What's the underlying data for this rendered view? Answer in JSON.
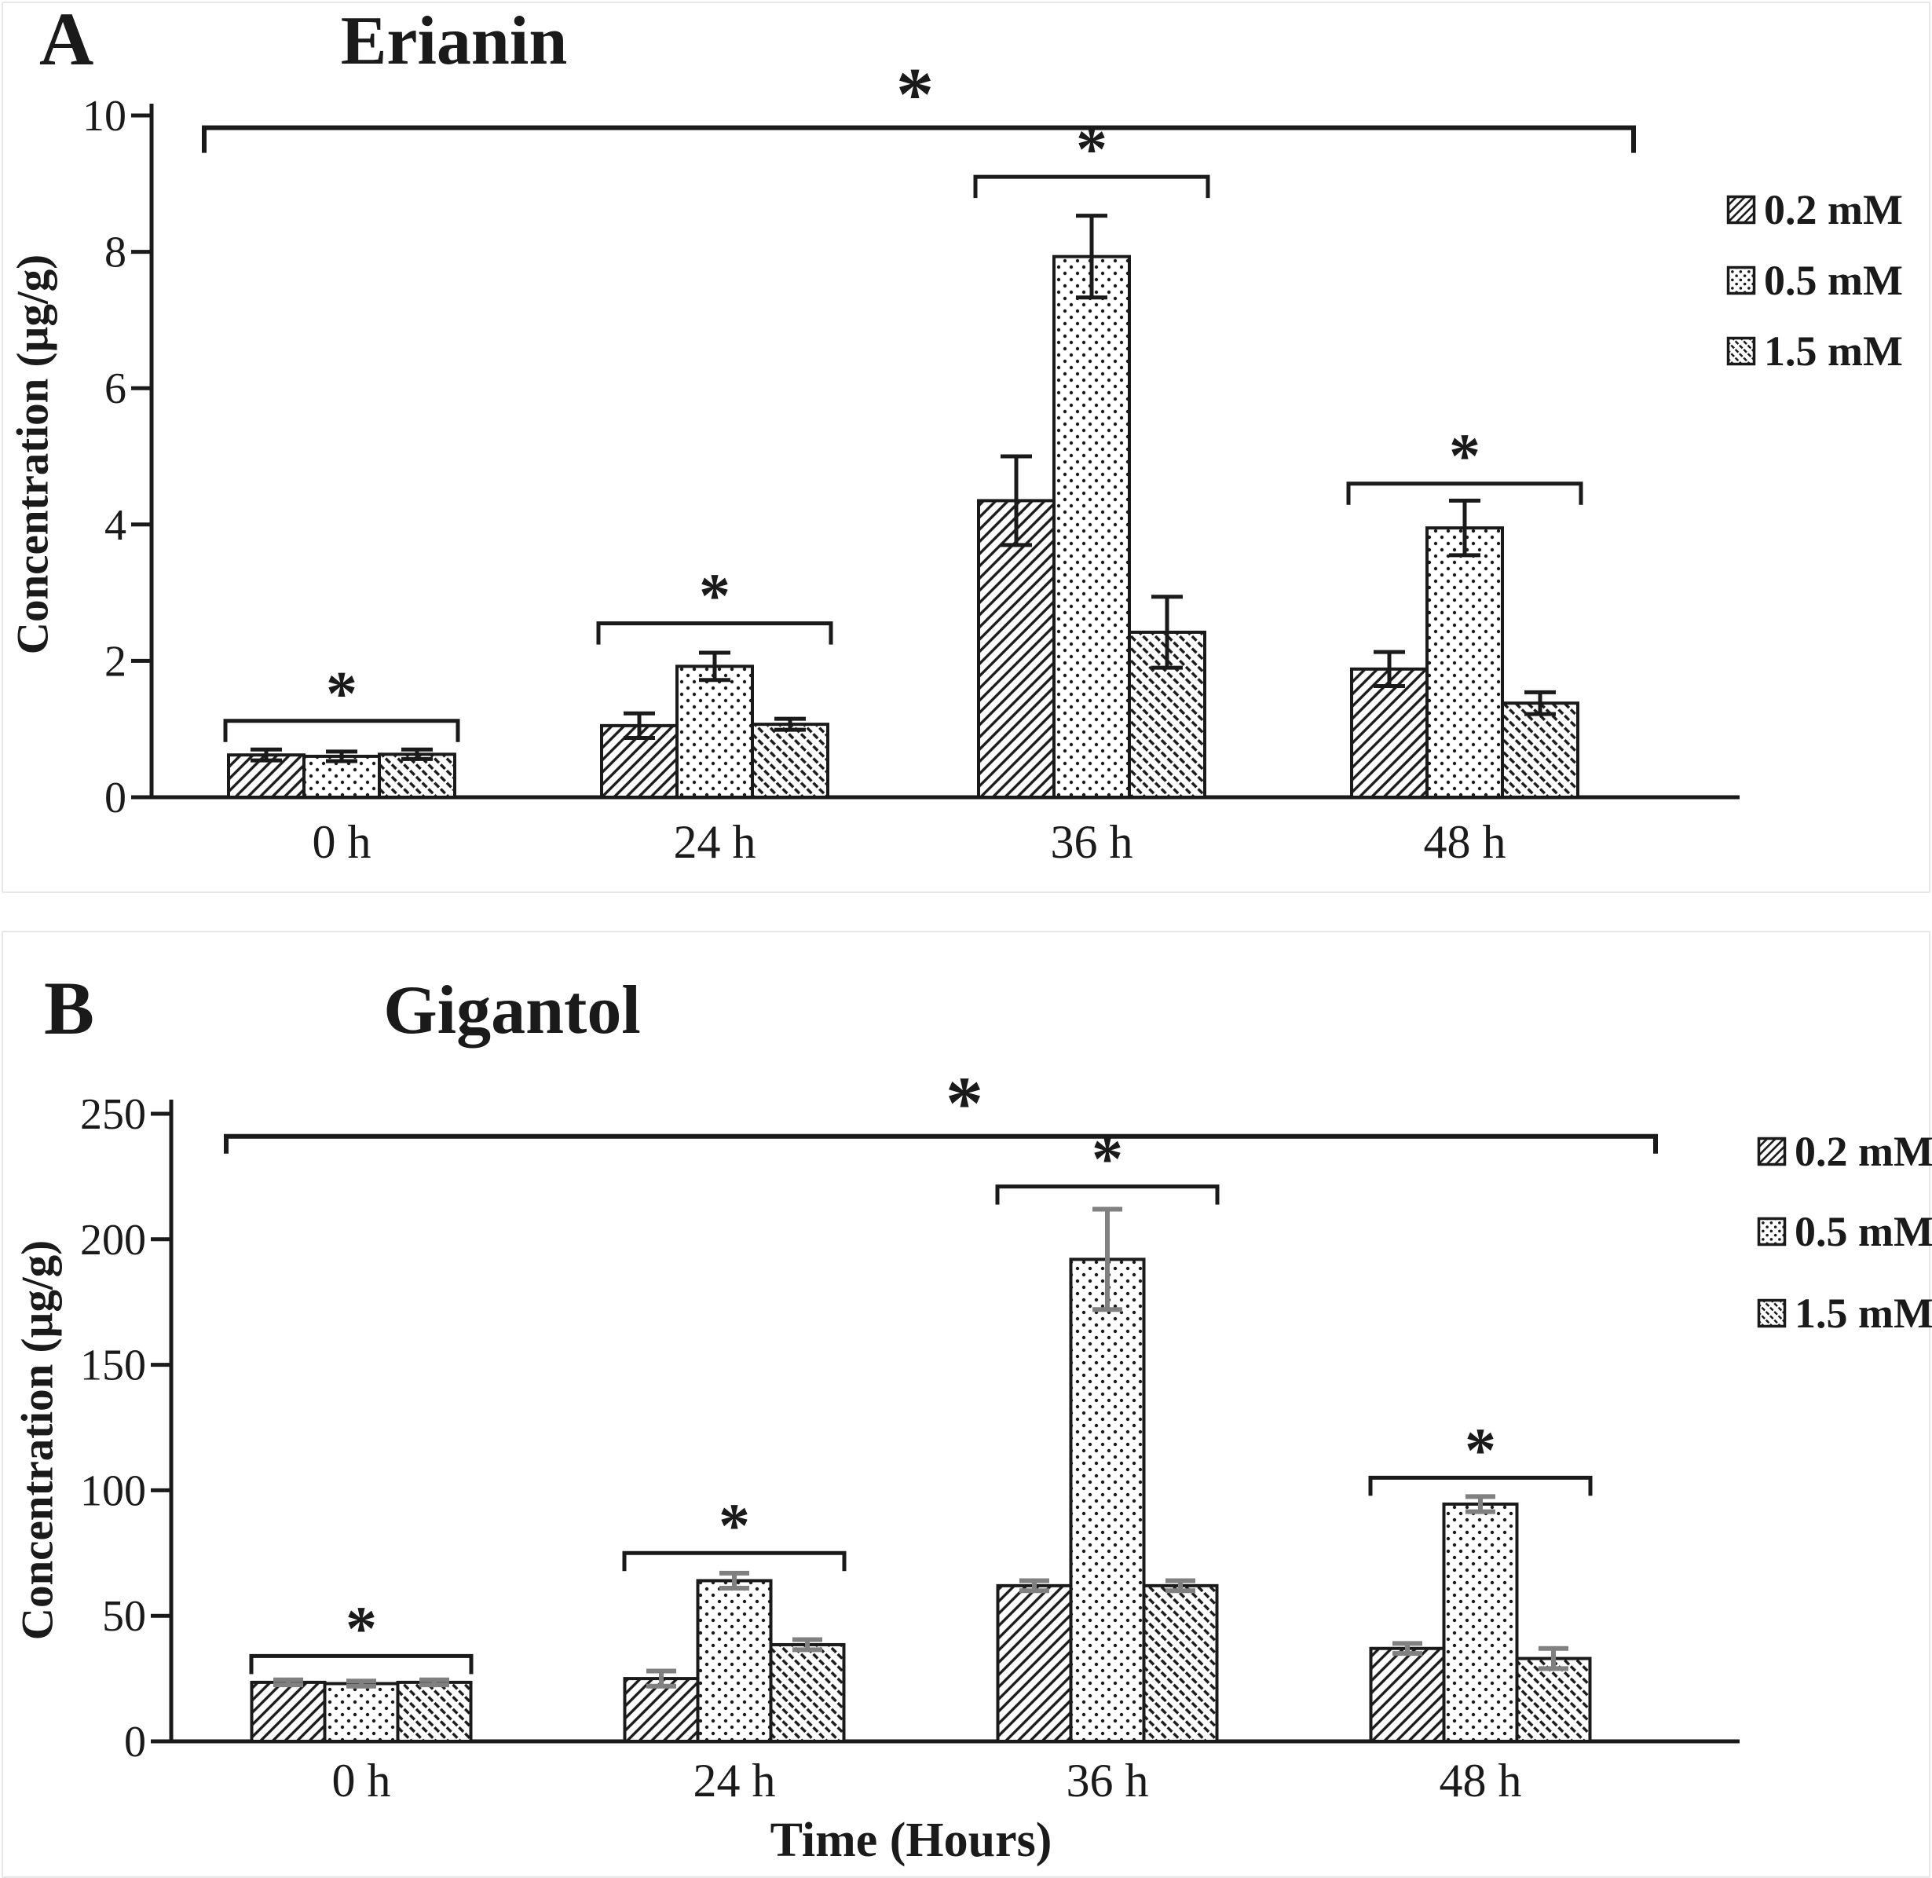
{
  "colors": {
    "ink": "#1a1a1a",
    "error_bars_b": "#808080",
    "panel_border": "#e7e7e7"
  },
  "legend": {
    "items": [
      "0.2 mM",
      "0.5 mM",
      "1.5 mM"
    ]
  },
  "chart_data": [
    {
      "type": "bar",
      "panel_label": "A",
      "title": "Erianin",
      "ylabel": "Concentration (µg/g)",
      "xlabel": "",
      "categories": [
        "0 h",
        "24 h",
        "36 h",
        "48 h"
      ],
      "ylim": [
        0,
        10
      ],
      "yticks": [
        0,
        2,
        4,
        6,
        8,
        10
      ],
      "grid": false,
      "legend_position": "right",
      "legend_labels": [
        "0.2 mM",
        "0.5 mM",
        "1.5 mM"
      ],
      "series": [
        {
          "name": "0.2 mM",
          "pattern": "diagonal-up",
          "values": [
            0.62,
            1.05,
            4.35,
            1.88
          ],
          "errors": [
            0.08,
            0.18,
            0.65,
            0.25
          ]
        },
        {
          "name": "0.5 mM",
          "pattern": "dots",
          "values": [
            0.6,
            1.92,
            7.93,
            3.95
          ],
          "errors": [
            0.07,
            0.2,
            0.6,
            0.4
          ]
        },
        {
          "name": "1.5 mM",
          "pattern": "diagonal-down-dashed",
          "values": [
            0.63,
            1.07,
            2.42,
            1.38
          ],
          "errors": [
            0.07,
            0.08,
            0.52,
            0.16
          ]
        }
      ],
      "significance": {
        "group_brackets": [
          {
            "group": 0,
            "y": 1.12,
            "label": "*"
          },
          {
            "group": 1,
            "y": 2.55,
            "label": "*"
          },
          {
            "group": 2,
            "y": 9.1,
            "label": "*"
          },
          {
            "group": 3,
            "y": 4.6,
            "label": "*"
          }
        ],
        "global_bracket": {
          "from_group": 0,
          "to_group": 3,
          "y": 9.82,
          "label": "*"
        }
      }
    },
    {
      "type": "bar",
      "panel_label": "B",
      "title": "Gigantol",
      "ylabel": "Concentration (µg/g)",
      "xlabel": "Time (Hours)",
      "categories": [
        "0 h",
        "24 h",
        "36 h",
        "48 h"
      ],
      "ylim": [
        0,
        250
      ],
      "yticks": [
        0,
        50,
        100,
        150,
        200,
        250
      ],
      "grid": false,
      "legend_position": "right",
      "legend_labels": [
        "0.2 mM",
        "0.5 mM",
        "1.5 mM"
      ],
      "series": [
        {
          "name": "0.2 mM",
          "pattern": "diagonal-up",
          "values": [
            23.5,
            25,
            62,
            37
          ],
          "errors": [
            1,
            3,
            2,
            2
          ]
        },
        {
          "name": "0.5 mM",
          "pattern": "dots",
          "values": [
            23,
            64,
            192,
            94.5
          ],
          "errors": [
            1,
            3,
            20,
            3
          ]
        },
        {
          "name": "1.5 mM",
          "pattern": "diagonal-down-dashed",
          "values": [
            23.5,
            38.5,
            62,
            33
          ],
          "errors": [
            1,
            2,
            2,
            4
          ]
        }
      ],
      "significance": {
        "group_brackets": [
          {
            "group": 0,
            "y": 34,
            "label": "*"
          },
          {
            "group": 1,
            "y": 75,
            "label": "*"
          },
          {
            "group": 2,
            "y": 221,
            "label": "*"
          },
          {
            "group": 3,
            "y": 105,
            "label": "*"
          }
        ],
        "global_bracket": {
          "from_group": 0,
          "to_group": 3,
          "y": 241,
          "label": "*"
        }
      }
    }
  ]
}
